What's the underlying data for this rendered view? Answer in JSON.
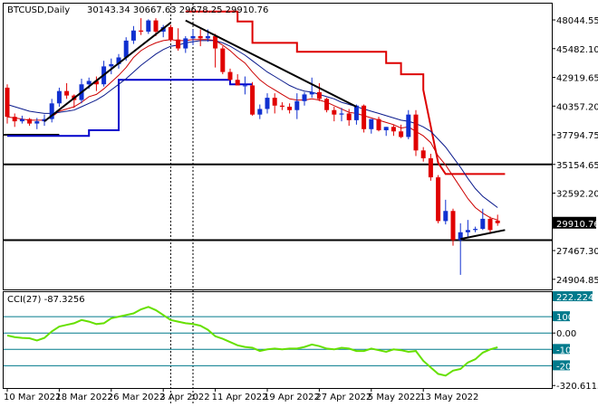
{
  "header": {
    "symbol": "BTCUSD,Daily",
    "ohlc": "30143.34 30667.63 29678.25 29910.76"
  },
  "colors": {
    "bull": "#1030d0",
    "bear": "#e00000",
    "ma_fast": "#cc0000",
    "ma_slow": "#0a1a8c",
    "stop_red": "#dd0000",
    "stop_blue": "#0000cc",
    "trend": "#000000",
    "cci": "#66e000",
    "cci_level": "#007a8c",
    "price_tag_bg": "#000000"
  },
  "chart_data": [
    {
      "type": "candlestick",
      "title": "BTCUSD,Daily",
      "ylim": [
        24000,
        49500
      ],
      "y_ticks": [
        "48044.55",
        "45482.10",
        "42919.65",
        "40357.20",
        "37794.75",
        "35154.65",
        "32592.20",
        "29910.76",
        "27467.30",
        "24904.85"
      ],
      "x_ticks": [
        "10 Mar 2022",
        "18 Mar 2022",
        "26 Mar 2022",
        "3 Apr 2022",
        "11 Apr 2022",
        "19 Apr 2022",
        "27 Apr 2022",
        "5 May 2022",
        "13 May 2022"
      ],
      "last_price": "29910.76",
      "candles": [
        [
          42000,
          42300,
          38800,
          39400
        ],
        [
          39400,
          39700,
          38500,
          39000
        ],
        [
          39000,
          39500,
          38800,
          39200
        ],
        [
          39200,
          39300,
          38600,
          38800
        ],
        [
          38800,
          39300,
          38300,
          39000
        ],
        [
          39000,
          39600,
          38600,
          39200
        ],
        [
          39200,
          41000,
          38900,
          40600
        ],
        [
          40600,
          42000,
          40300,
          41700
        ],
        [
          41700,
          42400,
          41000,
          41300
        ],
        [
          41300,
          41400,
          40200,
          40900
        ],
        [
          40900,
          42800,
          40600,
          42300
        ],
        [
          42300,
          42900,
          41900,
          42600
        ],
        [
          42600,
          43000,
          41700,
          42300
        ],
        [
          42300,
          44400,
          42100,
          43900
        ],
        [
          43900,
          44600,
          43200,
          44100
        ],
        [
          44100,
          45000,
          43700,
          44700
        ],
        [
          44700,
          46500,
          44400,
          46200
        ],
        [
          46200,
          47500,
          45900,
          47100
        ],
        [
          47100,
          48200,
          46700,
          47000
        ],
        [
          47000,
          48100,
          46800,
          48000
        ],
        [
          48000,
          48200,
          46600,
          47000
        ],
        [
          47000,
          47600,
          46500,
          47400
        ],
        [
          47400,
          47600,
          46100,
          46300
        ],
        [
          46300,
          47300,
          45300,
          45500
        ],
        [
          45500,
          46600,
          45100,
          46400
        ],
        [
          46400,
          47200,
          45800,
          46600
        ],
        [
          46600,
          47200,
          45700,
          46400
        ],
        [
          46400,
          47200,
          46100,
          46600
        ],
        [
          46600,
          46800,
          43800,
          45500
        ],
        [
          45500,
          45700,
          43200,
          43400
        ],
        [
          43400,
          43700,
          42600,
          42700
        ],
        [
          42700,
          43200,
          42400,
          42200
        ],
        [
          42200,
          43000,
          41400,
          42200
        ],
        [
          42200,
          42500,
          39500,
          39600
        ],
        [
          39600,
          40500,
          39200,
          40100
        ],
        [
          40100,
          41500,
          39700,
          41100
        ],
        [
          41100,
          41500,
          39700,
          40400
        ],
        [
          40400,
          40700,
          40000,
          40300
        ],
        [
          40300,
          40600,
          39700,
          40000
        ],
        [
          40000,
          41500,
          39200,
          40800
        ],
        [
          40800,
          41600,
          40400,
          41400
        ],
        [
          41400,
          42900,
          41100,
          41600
        ],
        [
          41600,
          42400,
          40800,
          41000
        ],
        [
          41000,
          41100,
          39800,
          40000
        ],
        [
          40000,
          40300,
          39000,
          39600
        ],
        [
          39600,
          40200,
          39000,
          39700
        ],
        [
          39700,
          40100,
          38600,
          39100
        ],
        [
          39100,
          40500,
          38700,
          40400
        ],
        [
          40400,
          40500,
          38000,
          38300
        ],
        [
          38300,
          39000,
          37900,
          39200
        ],
        [
          39200,
          39400,
          38100,
          38200
        ],
        [
          38200,
          38500,
          37700,
          38500
        ],
        [
          38500,
          38700,
          37700,
          38100
        ],
        [
          38100,
          38700,
          37500,
          37600
        ],
        [
          37600,
          40000,
          37400,
          39600
        ],
        [
          39600,
          40000,
          35900,
          36400
        ],
        [
          36400,
          36700,
          35400,
          35700
        ],
        [
          35700,
          36100,
          33700,
          34000
        ],
        [
          34000,
          34200,
          29900,
          30100
        ],
        [
          30100,
          32000,
          29800,
          31000
        ],
        [
          31000,
          31200,
          27900,
          28400
        ],
        [
          28400,
          29900,
          25300,
          29100
        ],
        [
          29100,
          30200,
          28700,
          29300
        ],
        [
          29300,
          29600,
          29100,
          29400
        ],
        [
          29400,
          31200,
          29300,
          30300
        ],
        [
          30300,
          30500,
          29000,
          29300
        ],
        [
          30143,
          30668,
          29678,
          29911
        ]
      ],
      "series": [
        {
          "name": "",
          "values": [
            39400,
            39300,
            39200,
            39100,
            39100,
            39100,
            39400,
            39900,
            40100,
            40300,
            40700,
            41200,
            41400,
            41900,
            42500,
            43100,
            43800,
            44700,
            45300,
            45700,
            46000,
            46200,
            46300,
            46200,
            46200,
            46300,
            46300,
            46300,
            46200,
            45800,
            45300,
            44700,
            44200,
            43400,
            42700,
            42200,
            41800,
            41400,
            41000,
            40900,
            40900,
            41000,
            40900,
            40700,
            40400,
            40100,
            39800,
            39700,
            39500,
            39300,
            39100,
            38900,
            38700,
            38400,
            38500,
            38100,
            37700,
            37100,
            35900,
            35100,
            34100,
            33100,
            32100,
            31300,
            30800,
            30400,
            30200
          ]
        },
        {
          "name": "",
          "values": [
            40500,
            40300,
            40100,
            39900,
            39800,
            39700,
            39700,
            39800,
            39900,
            40000,
            40300,
            40600,
            40900,
            41300,
            41800,
            42300,
            42800,
            43400,
            44000,
            44500,
            45000,
            45400,
            45700,
            45800,
            46000,
            46100,
            46200,
            46200,
            46200,
            46000,
            45700,
            45300,
            44900,
            44400,
            43900,
            43400,
            43000,
            42600,
            42200,
            41900,
            41700,
            41600,
            41400,
            41200,
            41000,
            40700,
            40500,
            40300,
            40100,
            39900,
            39700,
            39500,
            39300,
            39100,
            39000,
            38800,
            38500,
            38100,
            37400,
            36700,
            35800,
            34900,
            33900,
            33000,
            32300,
            31800,
            31300
          ]
        },
        {
          "name": "",
          "values": [
            null,
            null,
            null,
            null,
            null,
            null,
            null,
            null,
            null,
            null,
            null,
            null,
            null,
            null,
            null,
            null,
            null,
            null,
            null,
            null,
            null,
            null,
            null,
            null,
            null,
            null,
            null,
            null,
            null,
            null,
            null,
            null,
            null,
            null,
            null,
            null,
            null,
            null,
            null,
            null,
            null,
            null,
            null,
            null,
            null,
            null,
            null,
            null,
            null,
            null,
            null,
            null,
            null,
            null,
            null,
            null,
            null,
            null,
            null,
            null,
            null,
            null,
            null,
            null,
            null,
            null,
            null
          ]
        },
        {
          "name": "",
          "values": [
            null,
            null,
            null,
            null,
            null,
            null,
            null,
            null,
            null,
            null,
            null,
            null,
            null,
            null,
            null,
            null,
            null,
            null,
            null,
            null,
            null,
            null,
            null,
            null,
            null,
            null,
            null,
            null,
            null,
            null,
            null,
            null,
            null,
            null,
            null,
            null,
            null,
            null,
            null,
            null,
            null,
            null,
            null,
            null,
            null,
            null,
            null,
            null,
            null,
            null,
            null,
            null,
            null,
            null,
            null,
            null,
            null,
            null,
            null,
            null,
            null,
            null,
            null,
            null,
            null,
            null,
            null
          ]
        }
      ],
      "stop_red": [
        [
          24,
          48800
        ],
        [
          31,
          48800
        ],
        [
          31,
          47900
        ],
        [
          33,
          47900
        ],
        [
          33,
          46000
        ],
        [
          39,
          46000
        ],
        [
          39,
          45200
        ],
        [
          51,
          45200
        ],
        [
          51,
          44200
        ],
        [
          53,
          44200
        ],
        [
          53,
          43200
        ],
        [
          56,
          43200
        ],
        [
          56,
          41800
        ],
        [
          58,
          35300
        ],
        [
          59,
          34300
        ],
        [
          67,
          34300
        ]
      ],
      "stop_blue": [
        [
          0,
          37700
        ],
        [
          11,
          37700
        ],
        [
          11,
          38200
        ],
        [
          15,
          38200
        ],
        [
          15,
          42700
        ],
        [
          30,
          42700
        ],
        [
          30,
          42300
        ],
        [
          33,
          42300
        ]
      ],
      "support_lines": [
        35154.65,
        28400
      ],
      "support_line_start": [
        0,
        0
      ],
      "short_line": [
        37794.75,
        0,
        7
      ],
      "trend_lines": [
        [
          [
            5,
            39000
          ],
          [
            22,
            47800
          ]
        ],
        [
          [
            24,
            48000
          ],
          [
            47,
            40300
          ]
        ],
        [
          [
            61,
            28500
          ],
          [
            67,
            29300
          ]
        ]
      ],
      "vlines": [
        22,
        25
      ]
    },
    {
      "type": "line",
      "title": "CCI(27) -87.3256",
      "ylim": [
        -336,
        250
      ],
      "y_ticks": [
        "222.2245",
        "100",
        "0.00",
        "-100",
        "-200",
        "-320.6115"
      ],
      "levels": [
        222.2245,
        100,
        0,
        -100,
        -200,
        -320.6115
      ],
      "series": [
        {
          "name": "CCI(27)",
          "values": [
            -15,
            -25,
            -30,
            -32,
            -45,
            -30,
            10,
            40,
            50,
            60,
            80,
            70,
            55,
            60,
            90,
            100,
            110,
            120,
            145,
            160,
            140,
            110,
            80,
            70,
            60,
            55,
            45,
            20,
            -20,
            -35,
            -55,
            -75,
            -85,
            -90,
            -110,
            -100,
            -95,
            -100,
            -95,
            -95,
            -85,
            -70,
            -80,
            -95,
            -100,
            -90,
            -95,
            -110,
            -110,
            -95,
            -105,
            -115,
            -100,
            -105,
            -115,
            -110,
            -170,
            -210,
            -250,
            -260,
            -230,
            -220,
            -180,
            -160,
            -120,
            -100,
            -87
          ]
        }
      ]
    }
  ]
}
